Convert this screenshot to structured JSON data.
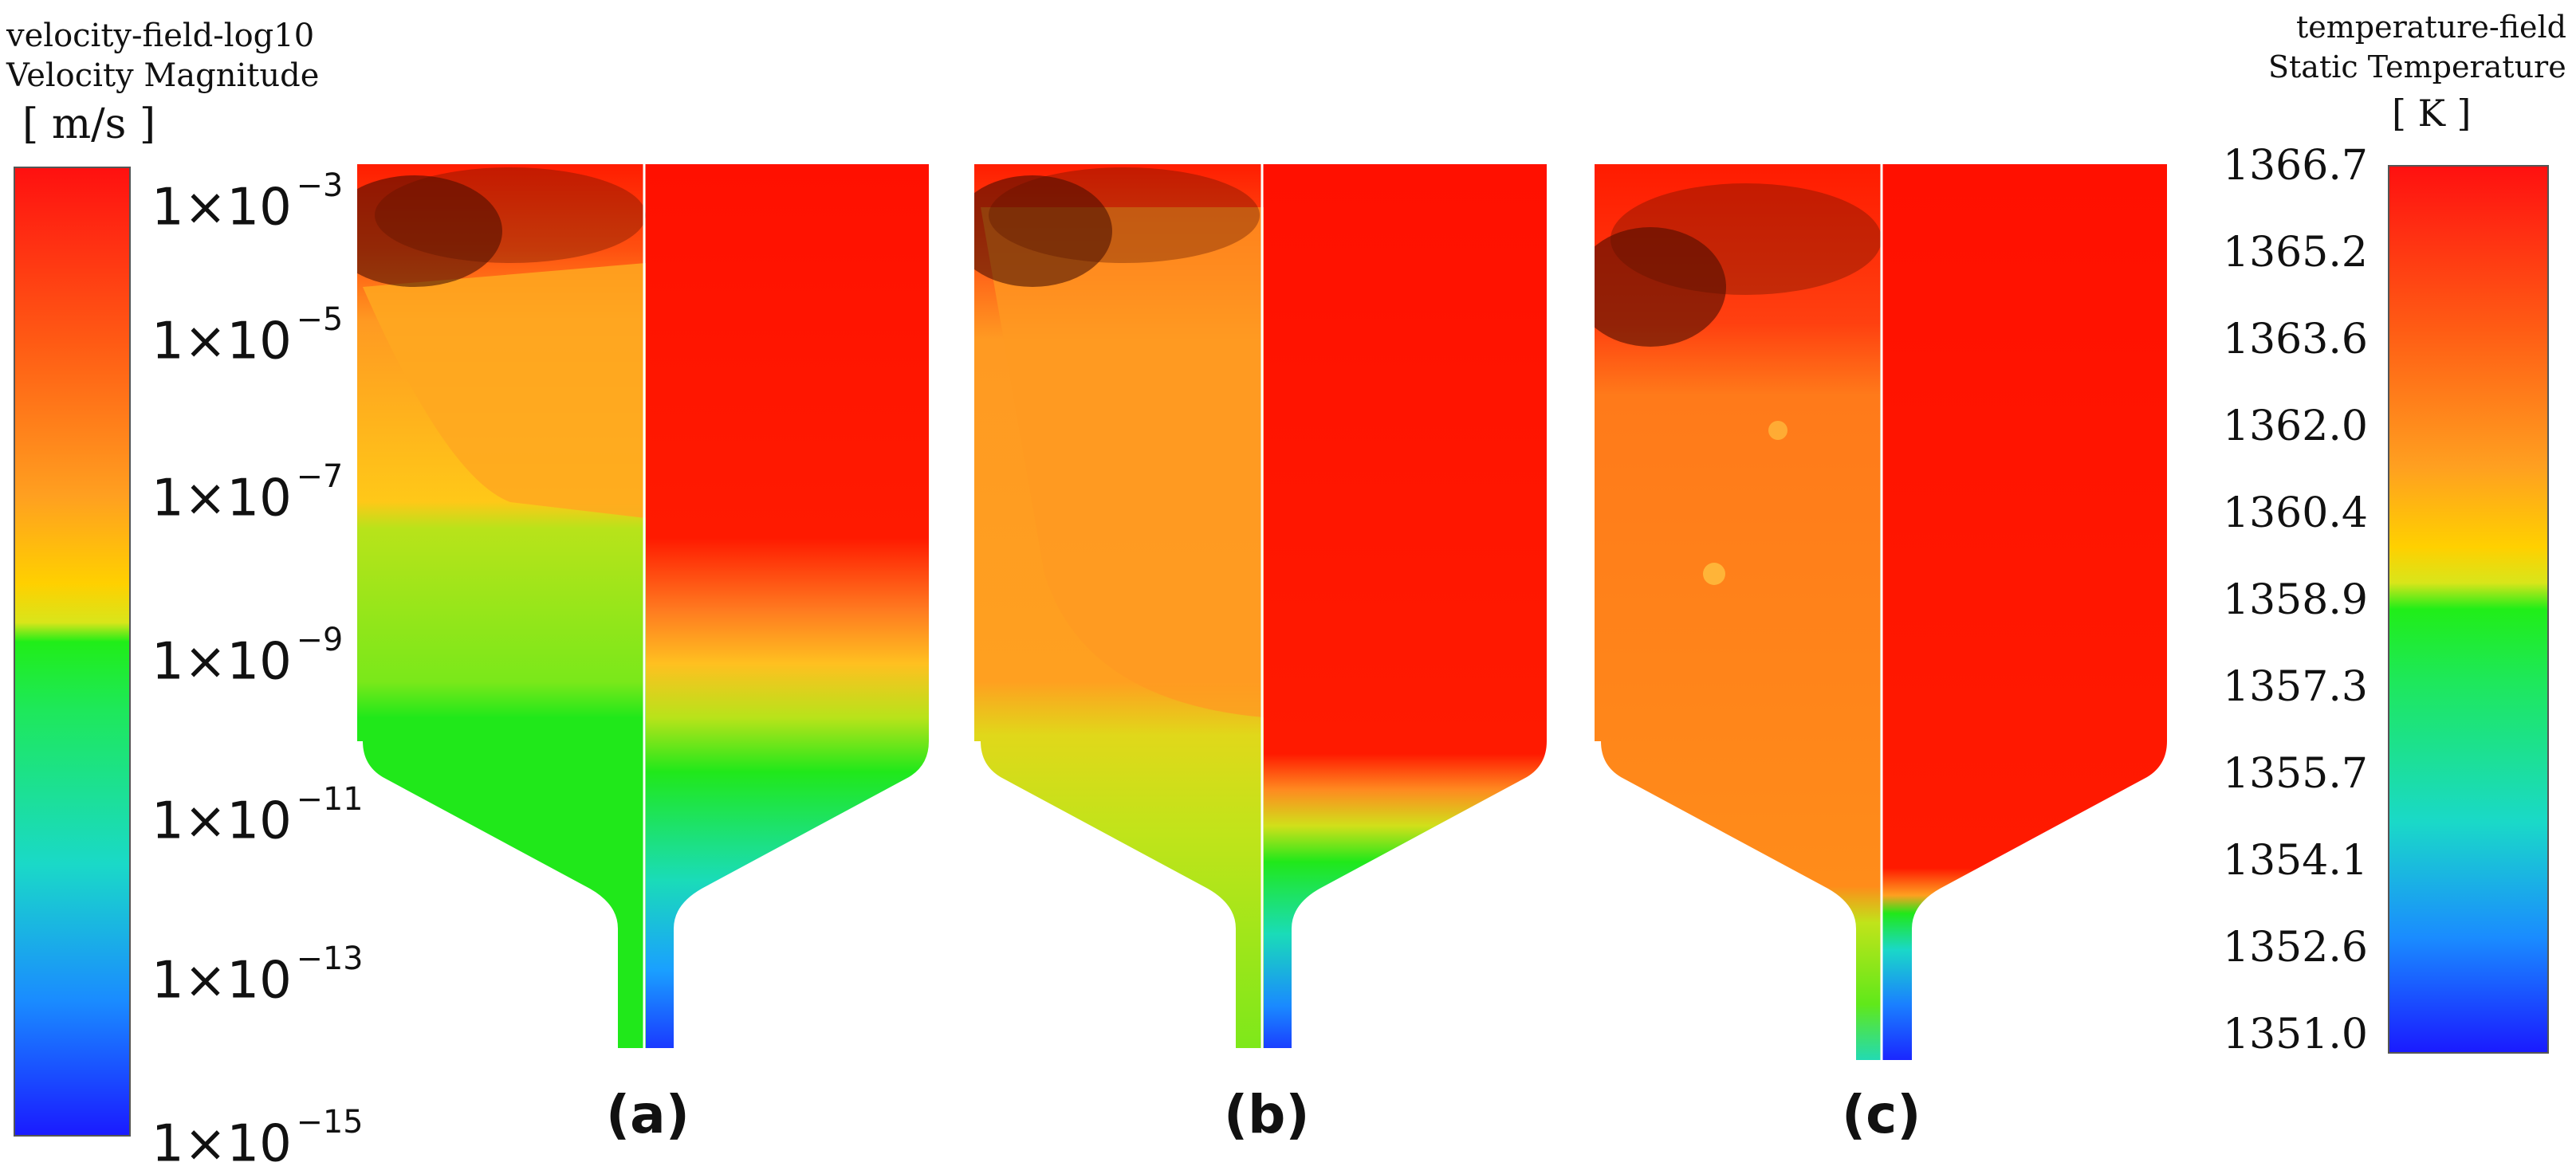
{
  "velocity_legend": {
    "title_line1": "velocity-field-log10",
    "title_line2": "Velocity Magnitude",
    "unit": "[ m/s ]",
    "ticks": [
      {
        "base": "1×10",
        "exp": "−3"
      },
      {
        "base": "1×10",
        "exp": "−5"
      },
      {
        "base": "1×10",
        "exp": "−7"
      },
      {
        "base": "1×10",
        "exp": "−9"
      },
      {
        "base": "1×10",
        "exp": "−11"
      },
      {
        "base": "1×10",
        "exp": "−13"
      },
      {
        "base": "1×10",
        "exp": "−15"
      }
    ]
  },
  "temperature_legend": {
    "title_line1": "temperature-field",
    "title_line2": "Static Temperature",
    "unit": "[ K ]",
    "ticks": [
      "1366.7",
      "1365.2",
      "1363.6",
      "1362.0",
      "1360.4",
      "1358.9",
      "1357.3",
      "1355.7",
      "1354.1",
      "1352.6",
      "1351.0"
    ]
  },
  "panels": [
    {
      "label": "(a)"
    },
    {
      "label": "(b)"
    },
    {
      "label": "(c)"
    }
  ],
  "colors": {
    "red": "#ff1a00",
    "orange": "#ff8c1a",
    "yellow": "#ffd800",
    "yellow_green": "#b8e31a",
    "green": "#1ee81a",
    "cyan": "#1ad8c8",
    "blue": "#1a2aff"
  }
}
